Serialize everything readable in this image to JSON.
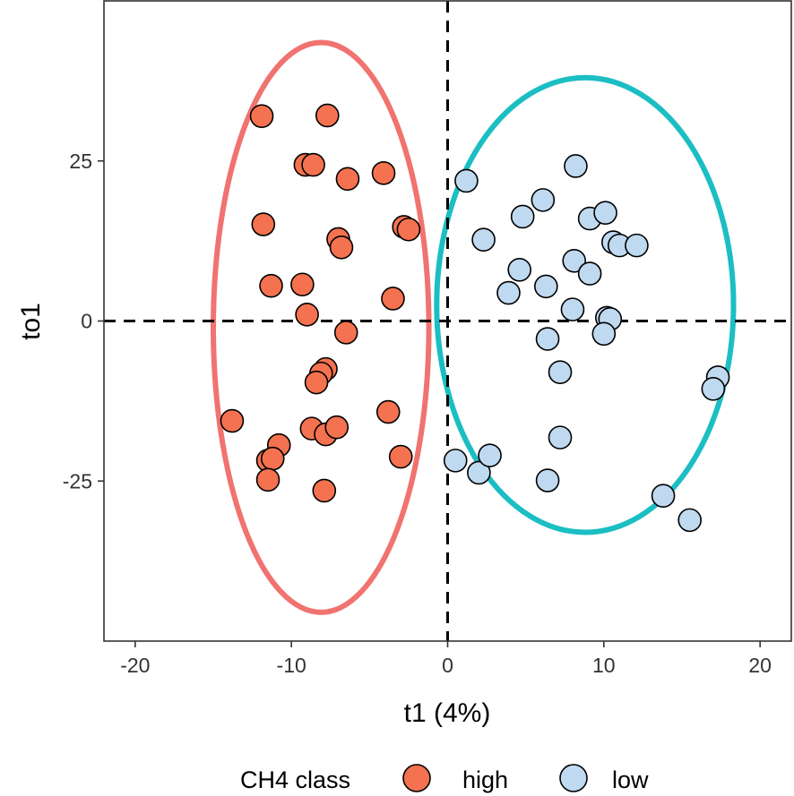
{
  "chart_data": {
    "type": "scatter",
    "title": "",
    "xlabel": "t1 (4%)",
    "ylabel": "to1",
    "xlim": [
      -22,
      22
    ],
    "ylim": [
      -50,
      50
    ],
    "xticks": [
      -20,
      -10,
      0,
      10,
      20
    ],
    "yticks": [
      -25,
      0,
      25
    ],
    "xtick_labels": [
      "-20",
      "-10",
      "0",
      "10",
      "20"
    ],
    "ytick_labels": [
      "-25",
      "0",
      "25"
    ],
    "grid": false,
    "reference_lines": {
      "x": 0,
      "y": 0,
      "style": "dashed"
    },
    "legend": {
      "title": "CH4 class",
      "position": "bottom",
      "entries": [
        {
          "label": "high",
          "color": "#F4724F"
        },
        {
          "label": "low",
          "color": "#BFD9F0"
        }
      ]
    },
    "series": [
      {
        "name": "high",
        "color": "#F4724F",
        "points": [
          [
            -11.9,
            32
          ],
          [
            -7.7,
            32.1
          ],
          [
            -9.1,
            24.4
          ],
          [
            -8.6,
            24.4
          ],
          [
            -6.4,
            22.2
          ],
          [
            -4.1,
            23.1
          ],
          [
            -11.8,
            15.1
          ],
          [
            -7,
            12.8
          ],
          [
            -6.8,
            11.5
          ],
          [
            -2.8,
            14.7
          ],
          [
            -2.5,
            14.3
          ],
          [
            -11.3,
            5.5
          ],
          [
            -9.3,
            5.7
          ],
          [
            -9,
            1
          ],
          [
            -3.5,
            3.5
          ],
          [
            -6.5,
            -1.8
          ],
          [
            -7.8,
            -7.5
          ],
          [
            -8.1,
            -8.2
          ],
          [
            -8.4,
            -9.6
          ],
          [
            -3.8,
            -14.2
          ],
          [
            -13.8,
            -15.6
          ],
          [
            -8.7,
            -16.8
          ],
          [
            -7.8,
            -17.7
          ],
          [
            -7.1,
            -16.6
          ],
          [
            -10.8,
            -19.4
          ],
          [
            -11.5,
            -21.8
          ],
          [
            -11.2,
            -21.5
          ],
          [
            -3,
            -21.2
          ],
          [
            -11.5,
            -24.8
          ],
          [
            -7.9,
            -26.5
          ]
        ]
      },
      {
        "name": "low",
        "color": "#BFD9F0",
        "points": [
          [
            8.2,
            24.2
          ],
          [
            1.2,
            21.9
          ],
          [
            6.1,
            18.9
          ],
          [
            4.8,
            16.3
          ],
          [
            9.1,
            16
          ],
          [
            10.1,
            16.9
          ],
          [
            2.3,
            12.7
          ],
          [
            10.6,
            12.3
          ],
          [
            11,
            11.8
          ],
          [
            12.1,
            11.8
          ],
          [
            8.1,
            9.4
          ],
          [
            9.1,
            7.4
          ],
          [
            4.6,
            8
          ],
          [
            3.9,
            4.4
          ],
          [
            6.3,
            5.4
          ],
          [
            8,
            1.8
          ],
          [
            10.2,
            0.5
          ],
          [
            10.4,
            0.3
          ],
          [
            6.4,
            -2.8
          ],
          [
            10,
            -2
          ],
          [
            7.2,
            -8
          ],
          [
            17.3,
            -8.8
          ],
          [
            17,
            -10.6
          ],
          [
            7.2,
            -18.2
          ],
          [
            0.5,
            -21.8
          ],
          [
            2,
            -23.7
          ],
          [
            2.7,
            -21
          ],
          [
            6.4,
            -24.9
          ],
          [
            13.8,
            -27.3
          ],
          [
            15.5,
            -31.1
          ]
        ]
      }
    ],
    "ellipses": [
      {
        "series": "high",
        "color": "#F07370",
        "center": [
          -8.1,
          -1
        ],
        "radius_x": 6.9,
        "radius_y": 44.5
      },
      {
        "series": "low",
        "color": "#1BBEC3",
        "center": [
          8.8,
          2.5
        ],
        "radius_x": 9.5,
        "radius_y": 35.5
      }
    ]
  }
}
